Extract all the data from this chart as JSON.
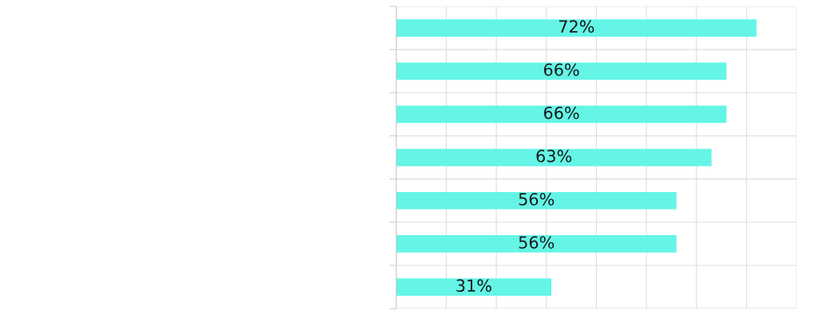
{
  "chart_data": {
    "type": "bar",
    "orientation": "horizontal",
    "categories": [
      null,
      null,
      null,
      null,
      null,
      null,
      null
    ],
    "values": [
      72,
      66,
      66,
      63,
      56,
      56,
      31
    ],
    "value_labels": [
      "72%",
      "66%",
      "66%",
      "63%",
      "56%",
      "56%",
      "31%"
    ],
    "color": "#64f5e6",
    "xlim": [
      0,
      80
    ],
    "xticks": [
      0,
      10,
      20,
      30,
      40,
      50,
      60,
      70,
      80
    ],
    "tick_labels": false,
    "grid": true
  }
}
